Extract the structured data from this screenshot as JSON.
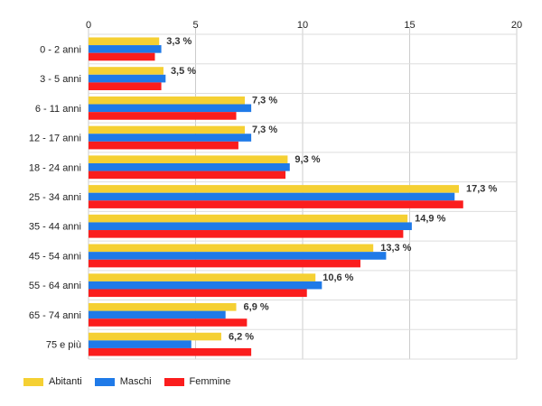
{
  "chart_data": {
    "type": "bar",
    "orientation": "horizontal",
    "title": "",
    "xlabel": "",
    "ylabel": "",
    "xlim": [
      0,
      20
    ],
    "x_ticks": [
      "0",
      "5",
      "10",
      "15",
      "20"
    ],
    "grid": true,
    "legend_position": "bottom-left",
    "categories": [
      "0 - 2 anni",
      "3 - 5 anni",
      "6 - 11 anni",
      "12 - 17 anni",
      "18 - 24 anni",
      "25 - 34 anni",
      "35 - 44 anni",
      "45 - 54 anni",
      "55 - 64 anni",
      "65 - 74 anni",
      "75 e più"
    ],
    "series": [
      {
        "name": "Abitanti",
        "color": "#f5d033",
        "values": [
          3.3,
          3.5,
          7.3,
          7.3,
          9.3,
          17.3,
          14.9,
          13.3,
          10.6,
          6.9,
          6.2
        ],
        "labels": [
          "3,3 %",
          "3,5 %",
          "7,3 %",
          "7,3 %",
          "9,3 %",
          "17,3 %",
          "14,9 %",
          "13,3 %",
          "10,6 %",
          "6,9 %",
          "6,2 %"
        ]
      },
      {
        "name": "Maschi",
        "color": "#1f7ae8",
        "values": [
          3.4,
          3.6,
          7.6,
          7.6,
          9.4,
          17.1,
          15.1,
          13.9,
          10.9,
          6.4,
          4.8
        ]
      },
      {
        "name": "Femmine",
        "color": "#fb1d1d",
        "values": [
          3.1,
          3.4,
          6.9,
          7.0,
          9.2,
          17.5,
          14.7,
          12.7,
          10.2,
          7.4,
          7.6
        ]
      }
    ]
  }
}
